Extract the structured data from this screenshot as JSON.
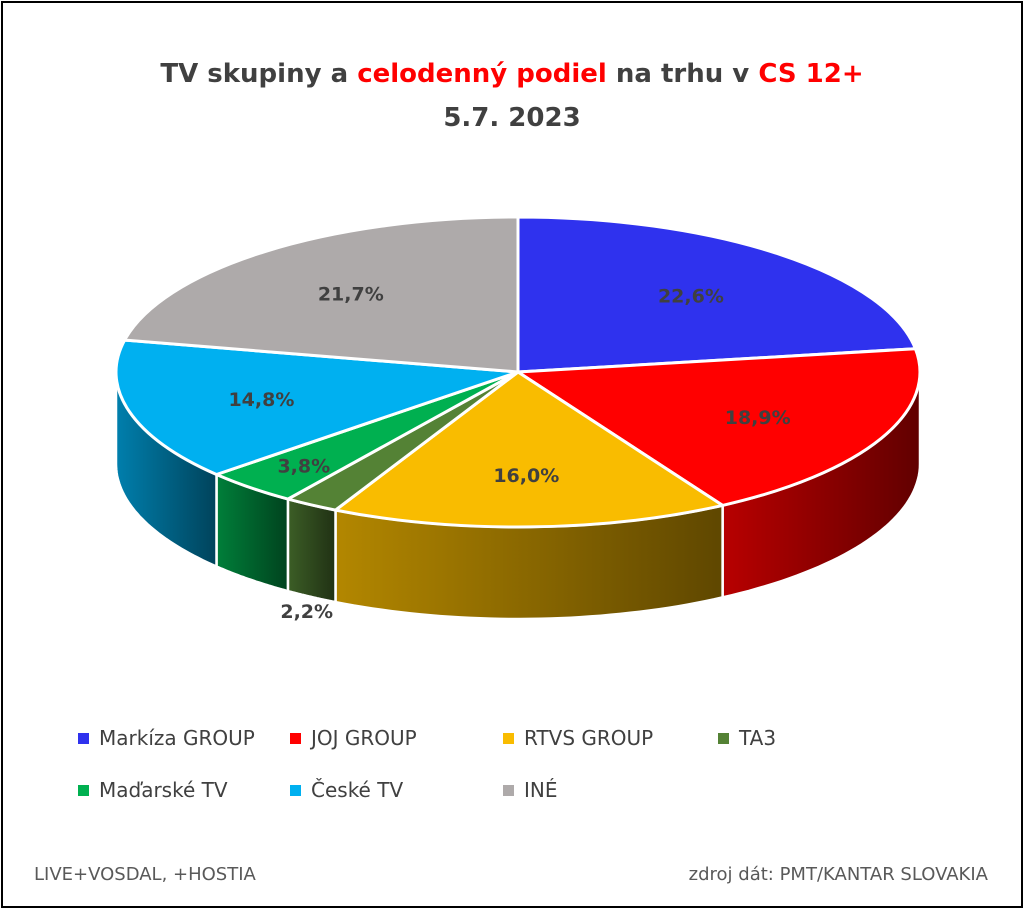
{
  "title": {
    "part1": "TV skupiny a ",
    "part2": "celodenný podiel",
    "part3": " na trhu v ",
    "part4": "CS 12+",
    "line2": "5.7. 2023"
  },
  "chart_data": {
    "type": "pie",
    "style": "3d-pie",
    "legend_position": "bottom",
    "slices": [
      {
        "name": "Markíza GROUP",
        "value": 22.6,
        "label": "22,6%",
        "color": "#2f32ee"
      },
      {
        "name": "JOJ GROUP",
        "value": 18.9,
        "label": "18,9%",
        "color": "#ff0000"
      },
      {
        "name": "RTVS GROUP",
        "value": 16.0,
        "label": "16,0%",
        "color": "#f9bc00"
      },
      {
        "name": "TA3",
        "value": 2.2,
        "label": "2,2%",
        "color": "#548235"
      },
      {
        "name": "Maďarské  TV",
        "value": 3.8,
        "label": "3,8%",
        "color": "#00b050"
      },
      {
        "name": "České  TV",
        "value": 14.8,
        "label": "14,8%",
        "color": "#00b0f0"
      },
      {
        "name": "INÉ",
        "value": 21.7,
        "label": "21,7%",
        "color": "#aeaaaa"
      }
    ]
  },
  "footer": {
    "left": "LIVE+VOSDAL,  +HOSTIA",
    "right": "zdroj dát: PMT/KANTAR SLOVAKIA"
  }
}
